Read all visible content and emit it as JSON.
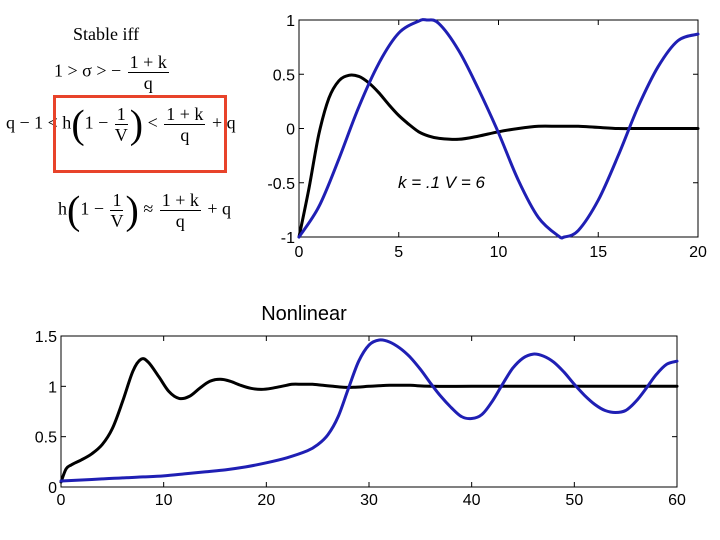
{
  "annotations": {
    "stable_label": "Stable iff",
    "eq1": {
      "left": "1 > σ > −",
      "num": "1 + k",
      "den": "q"
    },
    "eq2": {
      "left": "q − 1 < h",
      "inner_one": "1 −",
      "inner_num": "1",
      "inner_den": "V",
      "mid": "<",
      "num": "1 + k",
      "den": "q",
      "right": "+ q"
    },
    "eq3": {
      "left": "h",
      "inner_one": "1 −",
      "inner_num": "1",
      "inner_den": "V",
      "mid": "≈",
      "num": "1 + k",
      "den": "q",
      "right": "+ q"
    },
    "highlight_color": "#e8432a"
  },
  "chart_data": [
    {
      "type": "line",
      "title": "",
      "annotation": "k = .1   V = 6",
      "xlim": [
        0,
        20
      ],
      "ylim": [
        -1,
        1
      ],
      "xticks": [
        "0",
        "5",
        "10",
        "15",
        "20"
      ],
      "yticks": [
        "1",
        "0.5",
        "0",
        "-0.5",
        "-1"
      ],
      "xtick_values": [
        0,
        5,
        10,
        15,
        20
      ],
      "ytick_values": [
        1,
        0.5,
        0,
        -0.5,
        -1
      ],
      "series": [
        {
          "color": "#000000",
          "x": [
            0,
            0.5,
            1,
            1.5,
            2,
            2.5,
            3,
            3.5,
            4,
            4.5,
            5,
            5.5,
            6,
            6.5,
            7,
            8,
            9,
            10,
            11,
            12,
            13,
            14,
            15,
            16,
            17,
            18,
            19,
            20
          ],
          "y": [
            -1,
            -0.55,
            -0.05,
            0.28,
            0.44,
            0.49,
            0.48,
            0.42,
            0.33,
            0.22,
            0.12,
            0.04,
            -0.03,
            -0.07,
            -0.09,
            -0.1,
            -0.07,
            -0.03,
            0.0,
            0.02,
            0.02,
            0.02,
            0.01,
            0.0,
            0.0,
            0.0,
            0.0,
            0.0
          ]
        },
        {
          "color": "#1f1fb4",
          "x": [
            0,
            1,
            2,
            3,
            4,
            5,
            6,
            6.4,
            7,
            8,
            9,
            10,
            11,
            12,
            13,
            13.3,
            14,
            15,
            16,
            17,
            18,
            19,
            20
          ],
          "y": [
            -1,
            -0.72,
            -0.28,
            0.2,
            0.6,
            0.88,
            0.99,
            1.0,
            0.97,
            0.72,
            0.36,
            -0.04,
            -0.48,
            -0.82,
            -0.99,
            -1.0,
            -0.94,
            -0.66,
            -0.25,
            0.2,
            0.57,
            0.81,
            0.87
          ]
        }
      ]
    },
    {
      "type": "line",
      "title": "Nonlinear",
      "xlim": [
        0,
        60
      ],
      "ylim": [
        0,
        1.5
      ],
      "xticks": [
        "0",
        "10",
        "20",
        "30",
        "40",
        "50",
        "60"
      ],
      "yticks": [
        "1.5",
        "1",
        "0.5",
        "0"
      ],
      "xtick_values": [
        0,
        10,
        20,
        30,
        40,
        50,
        60
      ],
      "ytick_values": [
        1.5,
        1,
        0.5,
        0
      ],
      "series": [
        {
          "color": "#000000",
          "x": [
            0,
            0.5,
            1,
            2,
            3,
            4,
            5,
            6,
            7,
            7.8,
            8.5,
            9.5,
            10.5,
            11.5,
            12.5,
            13.5,
            14.5,
            15.5,
            16.5,
            17.5,
            18.5,
            19.5,
            20.5,
            21.5,
            22.5,
            23.5,
            24.5,
            25.5,
            26.5,
            27.5,
            28.5,
            30,
            32,
            34,
            36,
            40,
            45,
            50,
            55,
            60
          ],
          "y": [
            0.05,
            0.18,
            0.22,
            0.27,
            0.33,
            0.42,
            0.58,
            0.85,
            1.15,
            1.27,
            1.24,
            1.1,
            0.95,
            0.88,
            0.9,
            0.98,
            1.05,
            1.07,
            1.05,
            1.01,
            0.98,
            0.97,
            0.98,
            1.0,
            1.02,
            1.02,
            1.02,
            1.01,
            1.0,
            0.99,
            0.99,
            1.0,
            1.01,
            1.01,
            1.0,
            1.0,
            1.0,
            1.0,
            1.0,
            1.0
          ]
        },
        {
          "color": "#1f1fb4",
          "x": [
            0,
            2,
            4,
            6,
            8,
            10,
            12,
            14,
            16,
            18,
            20,
            22,
            24,
            25,
            26,
            27,
            28,
            29,
            30,
            31,
            32,
            33,
            34,
            35,
            36,
            37,
            38,
            39,
            40,
            41,
            42,
            43,
            44,
            45,
            46,
            47,
            48,
            49,
            50,
            51,
            52,
            53,
            54,
            55,
            56,
            57,
            58,
            59,
            60
          ],
          "y": [
            0.06,
            0.07,
            0.08,
            0.09,
            0.1,
            0.11,
            0.13,
            0.15,
            0.17,
            0.2,
            0.24,
            0.29,
            0.36,
            0.42,
            0.52,
            0.7,
            0.98,
            1.25,
            1.41,
            1.46,
            1.44,
            1.38,
            1.29,
            1.17,
            1.03,
            0.9,
            0.79,
            0.7,
            0.68,
            0.72,
            0.85,
            1.02,
            1.18,
            1.28,
            1.32,
            1.3,
            1.24,
            1.14,
            1.02,
            0.91,
            0.82,
            0.76,
            0.74,
            0.76,
            0.85,
            0.98,
            1.12,
            1.22,
            1.25
          ]
        }
      ]
    }
  ]
}
